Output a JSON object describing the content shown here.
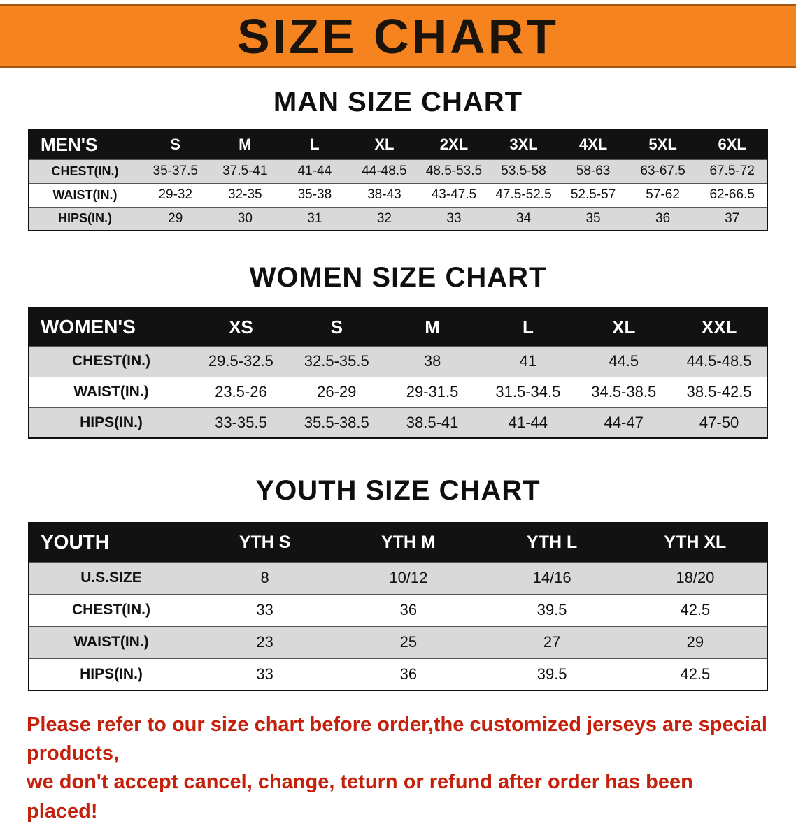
{
  "banner": {
    "title": "SIZE CHART"
  },
  "sections": [
    {
      "id": "men",
      "title": "MAN SIZE CHART",
      "header_label": "MEN'S",
      "columns": [
        "S",
        "M",
        "L",
        "XL",
        "2XL",
        "3XL",
        "4XL",
        "5XL",
        "6XL"
      ],
      "rows": [
        {
          "label": "CHEST(IN.)",
          "values": [
            "35-37.5",
            "37.5-41",
            "41-44",
            "44-48.5",
            "48.5-53.5",
            "53.5-58",
            "58-63",
            "63-67.5",
            "67.5-72"
          ]
        },
        {
          "label": "WAIST(IN.)",
          "values": [
            "29-32",
            "32-35",
            "35-38",
            "38-43",
            "43-47.5",
            "47.5-52.5",
            "52.5-57",
            "57-62",
            "62-66.5"
          ]
        },
        {
          "label": "HIPS(IN.)",
          "values": [
            "29",
            "30",
            "31",
            "32",
            "33",
            "34",
            "35",
            "36",
            "37"
          ]
        }
      ]
    },
    {
      "id": "women",
      "title": "WOMEN SIZE CHART",
      "header_label": "WOMEN'S",
      "columns": [
        "XS",
        "S",
        "M",
        "L",
        "XL",
        "XXL"
      ],
      "rows": [
        {
          "label": "CHEST(IN.)",
          "values": [
            "29.5-32.5",
            "32.5-35.5",
            "38",
            "41",
            "44.5",
            "44.5-48.5"
          ]
        },
        {
          "label": "WAIST(IN.)",
          "values": [
            "23.5-26",
            "26-29",
            "29-31.5",
            "31.5-34.5",
            "34.5-38.5",
            "38.5-42.5"
          ]
        },
        {
          "label": "HIPS(IN.)",
          "values": [
            "33-35.5",
            "35.5-38.5",
            "38.5-41",
            "41-44",
            "44-47",
            "47-50"
          ]
        }
      ]
    },
    {
      "id": "youth",
      "title": "YOUTH SIZE CHART",
      "header_label": "YOUTH",
      "columns": [
        "YTH S",
        "YTH M",
        "YTH L",
        "YTH XL"
      ],
      "rows": [
        {
          "label": "U.S.SIZE",
          "values": [
            "8",
            "10/12",
            "14/16",
            "18/20"
          ]
        },
        {
          "label": "CHEST(IN.)",
          "values": [
            "33",
            "36",
            "39.5",
            "42.5"
          ]
        },
        {
          "label": "WAIST(IN.)",
          "values": [
            "23",
            "25",
            "27",
            "29"
          ]
        },
        {
          "label": "HIPS(IN.)",
          "values": [
            "33",
            "36",
            "39.5",
            "42.5"
          ]
        }
      ]
    }
  ],
  "footer": {
    "lines": [
      "Please refer to our size chart before order,the customized jerseys are special products,",
      "we don't accept cancel, change, teturn or refund after order has been placed!"
    ]
  },
  "colors": {
    "banner_bg": "#f5831f",
    "header_bg": "#121212",
    "row_alt": "#d9d9d9",
    "footer_red": "#c3210c"
  }
}
